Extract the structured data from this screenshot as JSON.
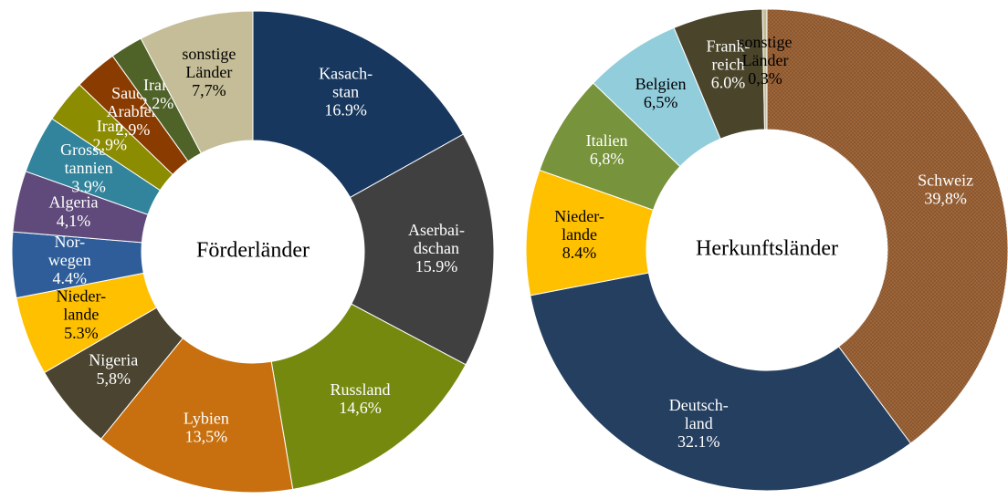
{
  "chart_data": [
    {
      "type": "pie",
      "title": "Förderländer",
      "categories": [
        "Kasach-\nstan",
        "Aserbai-\ndschan",
        "Russland",
        "Lybien",
        "Nigeria",
        "Nieder-\nlande",
        "Nor-\nwegen",
        "Algeria",
        "Grossbri\ntannien",
        "Iran",
        "Saudi-\nArabien",
        "Irak",
        "sonstige\nLänder"
      ],
      "values": [
        16.9,
        15.9,
        14.6,
        13.5,
        5.8,
        5.3,
        4.4,
        4.1,
        3.9,
        2.9,
        2.9,
        2.2,
        7.7
      ],
      "value_labels": [
        "16.9%",
        "15.9%",
        "14,6%",
        "13,5%",
        "5,8%",
        "5.3%",
        "4.4%",
        "4,1%",
        "3.9%",
        "2,9%",
        "2,9%",
        "2,2%",
        "7,7%"
      ],
      "colors": [
        "#17375e",
        "#404040",
        "#76890f",
        "#c8700f",
        "#4a4430",
        "#ffc000",
        "#2e5d99",
        "#604a7b",
        "#31849b",
        "#8c8c00",
        "#8a3c00",
        "#4f6228",
        "#c4bd97"
      ]
    },
    {
      "type": "pie",
      "title": "Herkunftsländer",
      "categories": [
        "Schweiz",
        "Deutsch-\nland",
        "Nieder-\nlande",
        "Italien",
        "Belgien",
        "Frank-\nreich",
        "sonstige\nLänder"
      ],
      "values": [
        39.8,
        32.1,
        8.4,
        6.8,
        6.5,
        6.0,
        0.3
      ],
      "value_labels": [
        "39,8%",
        "32.1%",
        "8.4%",
        "6,8%",
        "6,5%",
        "6.0%",
        "0,3%"
      ],
      "colors": [
        "#a3683a",
        "#243f60",
        "#ffc000",
        "#77933c",
        "#92cddc",
        "#4a452a",
        "#c4bd97"
      ]
    }
  ]
}
